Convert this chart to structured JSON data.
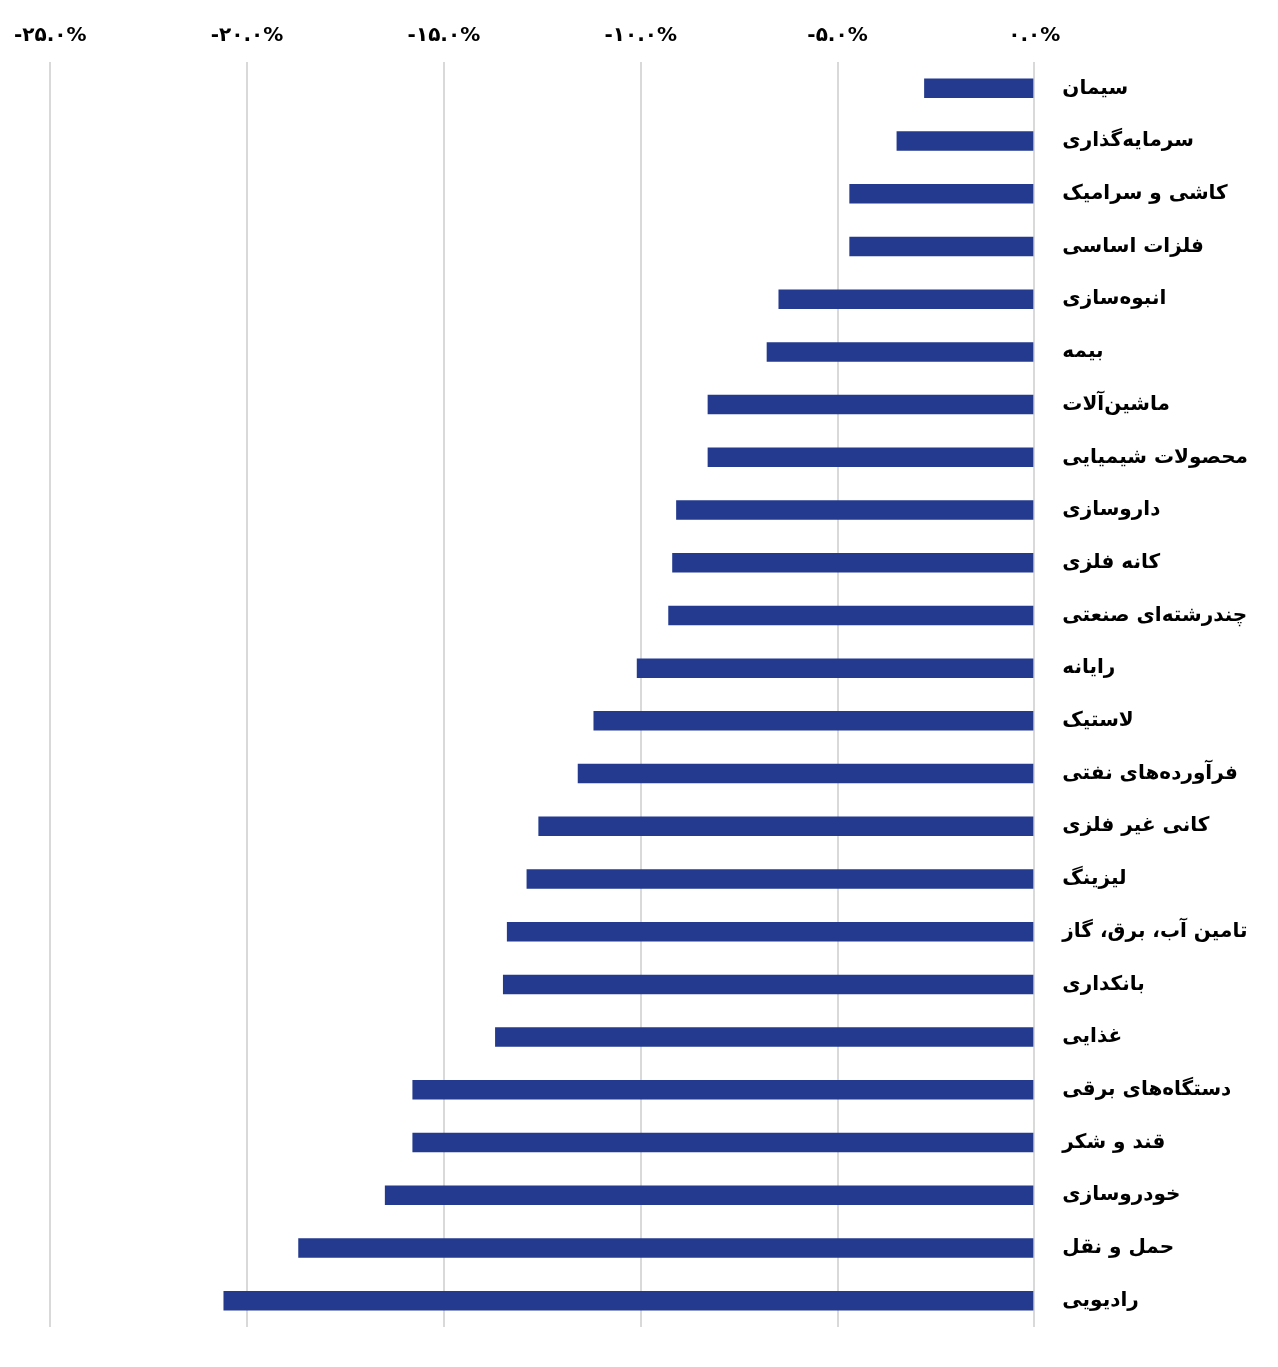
{
  "chart_data": {
    "type": "bar",
    "orientation": "horizontal",
    "categories": [
      "سیمان",
      "سرمایه‌گذاری",
      "کاشی و سرامیک",
      "فلزات اساسی",
      "انبوه‌سازی",
      "بیمه",
      "ماشین‌آلات",
      "محصولات شیمیایی",
      "داروسازی",
      "کانه فلزی",
      "چندرشته‌ای صنعتی",
      "رایانه",
      "لاستیک",
      "فرآورده‌های نفتی",
      "کانی غیر فلزی",
      "لیزینگ",
      "تامین آب، برق، گاز",
      "بانکداری",
      "غذایی",
      "دستگاه‌های برقی",
      "قند و شکر",
      "خودروسازی",
      "حمل و نقل",
      "رادیویی"
    ],
    "values": [
      -2.8,
      -3.5,
      -4.7,
      -4.7,
      -6.5,
      -6.8,
      -8.3,
      -8.3,
      -9.1,
      -9.2,
      -9.3,
      -10.1,
      -11.2,
      -11.6,
      -12.6,
      -12.9,
      -13.4,
      -13.5,
      -13.7,
      -15.8,
      -15.8,
      -16.5,
      -18.7,
      -20.6
    ],
    "color": "#233a8f",
    "xlim": [
      -25,
      0
    ],
    "xticks": [
      {
        "value": -25,
        "label": "-۲۵.۰%"
      },
      {
        "value": -20,
        "label": "-۲۰.۰%"
      },
      {
        "value": -15,
        "label": "-۱۵.۰%"
      },
      {
        "value": -10,
        "label": "-۱۰.۰%"
      },
      {
        "value": -5,
        "label": "-۵.۰%"
      },
      {
        "value": 0,
        "label": "۰.۰%"
      }
    ],
    "grid": "x",
    "legend": false
  }
}
